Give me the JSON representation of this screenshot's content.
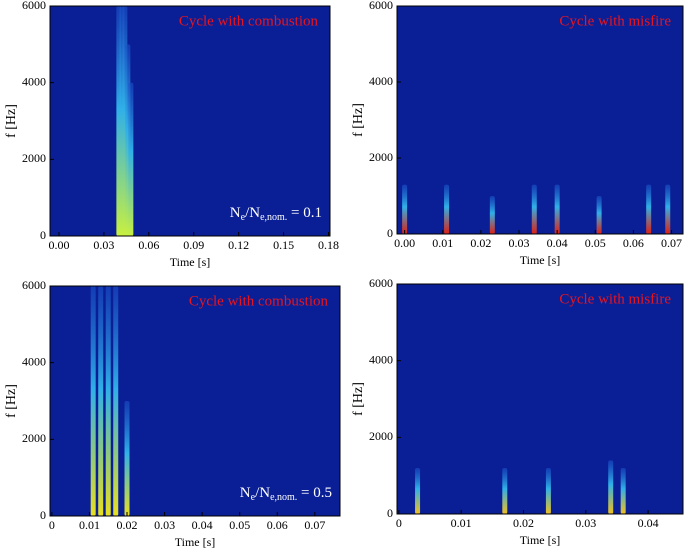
{
  "chart_data": [
    {
      "type": "spectrogram",
      "title": "Cycle with combustion",
      "annotation": [
        "N",
        "e",
        "/N",
        "e,nom.",
        " = 0.1"
      ],
      "xlabel": "Time [s]",
      "ylabel": "f [Hz]",
      "xlim": [
        -0.006,
        0.181
      ],
      "ylim": [
        0,
        6000
      ],
      "xticks": [
        {
          "value": 0,
          "label": "0.00"
        },
        0.03,
        0.06,
        0.09,
        0.12,
        0.15,
        0.18
      ],
      "yticks": [
        0,
        2000,
        4000,
        6000
      ],
      "x": [
        0.04,
        0.042,
        0.044,
        0.046,
        0.048
      ],
      "values": [
        6000,
        6000,
        6000,
        5000,
        4000
      ],
      "color": "#c8f040"
    },
    {
      "type": "spectrogram",
      "title": "Cycle with misfire",
      "xlabel": "Time [s]",
      "ylabel": "f [Hz]",
      "xlim": [
        -0.002,
        0.073
      ],
      "ylim": [
        0,
        6000
      ],
      "xticks": [
        {
          "value": 0,
          "label": "0.00"
        },
        0.01,
        0.02,
        0.03,
        0.04,
        0.05,
        0.06,
        0.07
      ],
      "yticks": [
        0,
        2000,
        4000,
        6000
      ],
      "x": [
        0.0,
        0.011,
        0.023,
        0.034,
        0.04,
        0.051,
        0.064,
        0.069
      ],
      "values": [
        1300,
        1300,
        1000,
        1300,
        1300,
        1000,
        1300,
        1300
      ],
      "color": "#e02010"
    },
    {
      "type": "spectrogram",
      "title": "Cycle with combustion",
      "annotation": [
        "N",
        "e",
        "/N",
        "e,nom.",
        " = 0.5"
      ],
      "xlabel": "Time [s]",
      "ylabel": "f [Hz]",
      "xlim": [
        -0.0005,
        0.0767
      ],
      "ylim": [
        0,
        6000
      ],
      "xticks": [
        0,
        0.01,
        0.02,
        0.03,
        0.04,
        0.05,
        0.06,
        0.07
      ],
      "yticks": [
        0,
        2000,
        4000,
        6000
      ],
      "x": [
        0.011,
        0.013,
        0.015,
        0.017,
        0.02
      ],
      "values": [
        6000,
        6000,
        6000,
        6000,
        3000
      ],
      "color": "#e8e020"
    },
    {
      "type": "spectrogram",
      "title": "Cycle with misfire",
      "xlabel": "Time [s]",
      "ylabel": "f [Hz]",
      "xlim": [
        -0.0003,
        0.0456
      ],
      "ylim": [
        0,
        6000
      ],
      "xticks": [
        0,
        0.01,
        0.02,
        0.03,
        0.04
      ],
      "yticks": [
        0,
        2000,
        4000,
        6000
      ],
      "x": [
        0.003,
        0.017,
        0.024,
        0.034,
        0.036
      ],
      "values": [
        1200,
        1200,
        1200,
        1400,
        1200
      ],
      "color": "#f0c020"
    }
  ]
}
